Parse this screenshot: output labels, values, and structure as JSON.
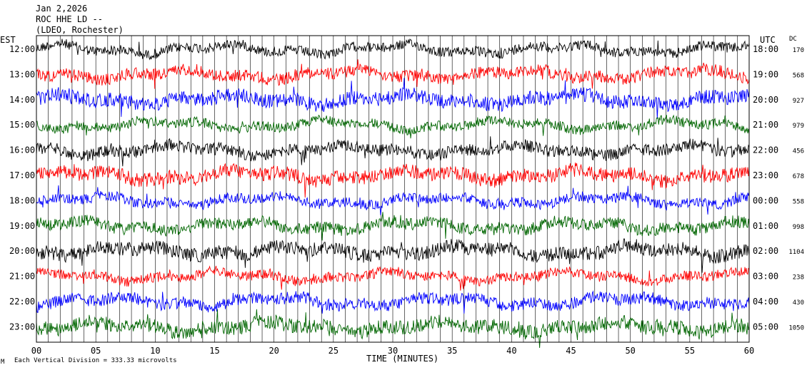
{
  "header": {
    "date": "Jan 2,2026",
    "station": "ROC HHE LD --",
    "network": "(LDEO, Rochester)"
  },
  "axes": {
    "left_title": "EST",
    "right_title": "UTC",
    "dc_title": "DC",
    "xlabel": "TIME (MINUTES)",
    "xticks": [
      "00",
      "05",
      "10",
      "15",
      "20",
      "25",
      "30",
      "35",
      "40",
      "45",
      "50",
      "55",
      "60"
    ]
  },
  "footer": {
    "mark": "M",
    "scale_text": "Each Vertical Division = 333.33 microvolts"
  },
  "colors": {
    "cycle": [
      "#000000",
      "#ff0000",
      "#0000ff",
      "#006600"
    ],
    "grid": "#000000"
  },
  "chart_data": {
    "type": "line",
    "xlim": [
      0,
      60
    ],
    "rows": [
      {
        "est": "12:00",
        "utc": "18:00",
        "dc": "170"
      },
      {
        "est": "13:00",
        "utc": "19:00",
        "dc": "568"
      },
      {
        "est": "14:00",
        "utc": "20:00",
        "dc": "927"
      },
      {
        "est": "15:00",
        "utc": "21:00",
        "dc": "979"
      },
      {
        "est": "16:00",
        "utc": "22:00",
        "dc": "456"
      },
      {
        "est": "17:00",
        "utc": "23:00",
        "dc": "678"
      },
      {
        "est": "18:00",
        "utc": "00:00",
        "dc": "558"
      },
      {
        "est": "19:00",
        "utc": "01:00",
        "dc": "998"
      },
      {
        "est": "20:00",
        "utc": "02:00",
        "dc": "1104"
      },
      {
        "est": "21:00",
        "utc": "03:00",
        "dc": "238"
      },
      {
        "est": "22:00",
        "utc": "04:00",
        "dc": "430"
      },
      {
        "est": "23:00",
        "utc": "05:00",
        "dc": "1050"
      }
    ]
  }
}
